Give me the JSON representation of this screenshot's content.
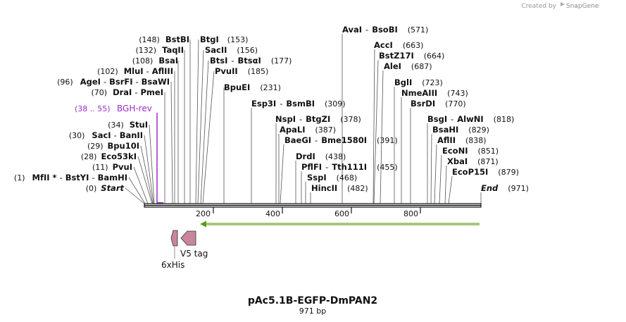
{
  "credit": {
    "created_by": "Created by",
    "brand": "SnapGene"
  },
  "map": {
    "title": "pAc5.1B-EGFP-DmPAN2",
    "length_label": "971 bp",
    "length": 971,
    "ticks": [
      "200",
      "400",
      "600",
      "800"
    ]
  },
  "primer": {
    "range": "(38 .. 55)",
    "name": "BGH-rev",
    "color": "#9a2fc8"
  },
  "features": [
    {
      "name": "6xHis",
      "color": "#c8869c"
    },
    {
      "name": "V5 tag",
      "color": "#c8869c"
    }
  ],
  "orf_color": "#5a9a1a",
  "sites": [
    {
      "pos": "(0)",
      "name": "Start"
    },
    {
      "pos": "(1)",
      "name": "MfII *",
      "sep": "-",
      "name2": "BstYI",
      "sep2": "-",
      "name3": "BamHI"
    },
    {
      "pos": "(11)",
      "name": "PvuI"
    },
    {
      "pos": "(28)",
      "name": "Eco53kI"
    },
    {
      "pos": "(29)",
      "name": "Bpu10I"
    },
    {
      "pos": "(30)",
      "name": "SacI",
      "sep": "-",
      "name2": "BanII"
    },
    {
      "pos": "(34)",
      "name": "StuI"
    },
    {
      "pos": "(70)",
      "name": "DraI",
      "sep": "-",
      "name2": "PmeI"
    },
    {
      "pos": "(96)",
      "name": "AgeI",
      "sep": "-",
      "name2": "BsrFI",
      "sep2": "-",
      "name3": "BsaWI"
    },
    {
      "pos": "(102)",
      "name": "MluI",
      "sep": "-",
      "name2": "AflIII"
    },
    {
      "pos": "(108)",
      "name": "BsaI"
    },
    {
      "pos": "(132)",
      "name": "TaqII"
    },
    {
      "pos": "(148)",
      "name": "BstBI"
    },
    {
      "name": "BtgI",
      "pos": "(153)"
    },
    {
      "name": "SacII",
      "pos": "(156)"
    },
    {
      "name": "BtsI",
      "sep": "-",
      "name2": "BtsαI",
      "pos": "(177)"
    },
    {
      "name": "PvuII",
      "pos": "(185)"
    },
    {
      "name": "BpuEI",
      "pos": "(231)"
    },
    {
      "name": "Esp3I",
      "sep": "-",
      "name2": "BsmBI",
      "pos": "(309)"
    },
    {
      "name": "NspI",
      "sep": "-",
      "name2": "BtgZI",
      "pos": "(378)"
    },
    {
      "name": "ApaLI",
      "pos": "(387)"
    },
    {
      "name": "BaeGI",
      "sep": "-",
      "name2": "Bme1580I",
      "pos": "(391)"
    },
    {
      "name": "DrdI",
      "pos": "(438)"
    },
    {
      "name": "PflFI",
      "sep": "-",
      "name2": "Tth111I",
      "pos": "(455)"
    },
    {
      "name": "SspI",
      "pos": "(468)"
    },
    {
      "name": "HincII",
      "pos": "(482)"
    },
    {
      "name": "AvaI",
      "sep": "-",
      "name2": "BsoBI",
      "pos": "(571)"
    },
    {
      "name": "AccI",
      "pos": "(663)"
    },
    {
      "name": "BstZ17I",
      "pos": "(664)"
    },
    {
      "name": "AleI",
      "pos": "(687)"
    },
    {
      "name": "BglI",
      "pos": "(723)"
    },
    {
      "name": "NmeAIII",
      "pos": "(743)"
    },
    {
      "name": "BsrDI",
      "pos": "(770)"
    },
    {
      "name": "BsgI",
      "sep": "-",
      "name2": "AlwNI",
      "pos": "(818)"
    },
    {
      "name": "BsaHI",
      "pos": "(829)"
    },
    {
      "name": "AflII",
      "pos": "(838)"
    },
    {
      "name": "EcoNI",
      "pos": "(851)"
    },
    {
      "name": "XbaI",
      "pos": "(871)"
    },
    {
      "name": "EcoP15I",
      "pos": "(879)"
    },
    {
      "name": "End",
      "pos": "(971)"
    }
  ]
}
